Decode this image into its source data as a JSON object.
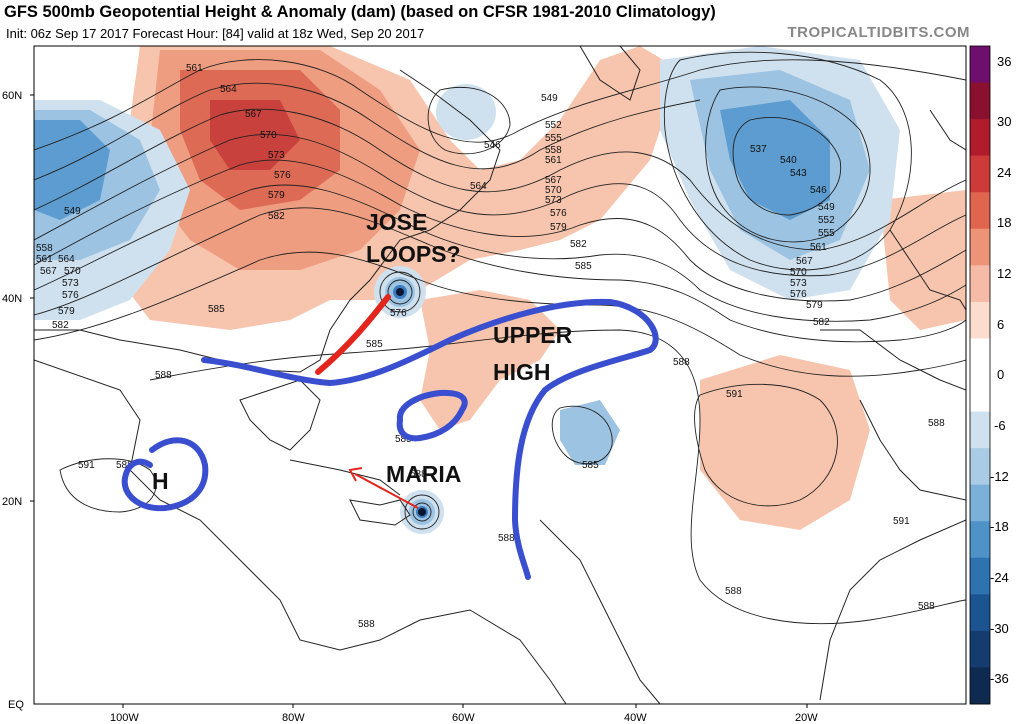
{
  "header": {
    "title": "GFS 500mb Geopotential Height & Anomaly (dam) (based on CFSR 1981-2010 Climatology)",
    "subtitle": "Init: 06z Sep 17 2017   Forecast Hour: [84]   valid at 18z Wed, Sep 20 2017",
    "source": "TROPICALTIDBITS.COM"
  },
  "axes": {
    "lat_labels": [
      "60N",
      "40N",
      "20N",
      "EQ"
    ],
    "lon_labels": [
      "100W",
      "80W",
      "60W",
      "40W",
      "20W"
    ]
  },
  "colorbar": {
    "ticks": [
      "36",
      "30",
      "24",
      "18",
      "12",
      "6",
      "0",
      "-6",
      "-12",
      "-18",
      "-24",
      "-30",
      "-36"
    ],
    "colors": [
      "#6e0f6e",
      "#8a1030",
      "#b01c2c",
      "#cc3a3a",
      "#e0654f",
      "#ec9378",
      "#f5bba6",
      "#fbdccd",
      "#ffffff",
      "#ffffff",
      "#cfe1ef",
      "#a9cbe5",
      "#7bb0d8",
      "#4f92c7",
      "#2e72b0",
      "#1b5491",
      "#153c6e",
      "#0f2a50"
    ],
    "anomaly_colors": {
      "warm_light": "#f7c4ad",
      "warm_mid": "#ee9d80",
      "warm_strong": "#dd6a54",
      "warm_max": "#c8413c",
      "cool_light": "#cfe1ef",
      "cool_mid": "#9cc3e2",
      "cool_strong": "#5d9cd0",
      "cool_max": "#3a7cbd"
    }
  },
  "contours": {
    "labels": [
      "561",
      "564",
      "567",
      "570",
      "573",
      "576",
      "579",
      "582",
      "585",
      "546",
      "549",
      "552",
      "555",
      "558",
      "561",
      "564",
      "567",
      "570",
      "573",
      "576",
      "579",
      "582",
      "585",
      "588",
      "537",
      "540",
      "543",
      "546",
      "549",
      "552",
      "555",
      "561",
      "567",
      "570",
      "573",
      "576",
      "579",
      "582",
      "549",
      "558",
      "561",
      "564",
      "567",
      "570",
      "573",
      "576",
      "579",
      "582",
      "585",
      "588",
      "591",
      "591",
      "588",
      "591",
      "588",
      "588",
      "585",
      "588",
      "588",
      "576",
      "585",
      "588",
      "588"
    ]
  },
  "annotations": {
    "jose": "JOSE",
    "loops": "LOOPS?",
    "upper": "UPPER",
    "high": "HIGH",
    "maria": "MARIA",
    "h": "H"
  },
  "colors": {
    "blue_track": "#3a4fd0",
    "red_track": "#e2261d"
  }
}
